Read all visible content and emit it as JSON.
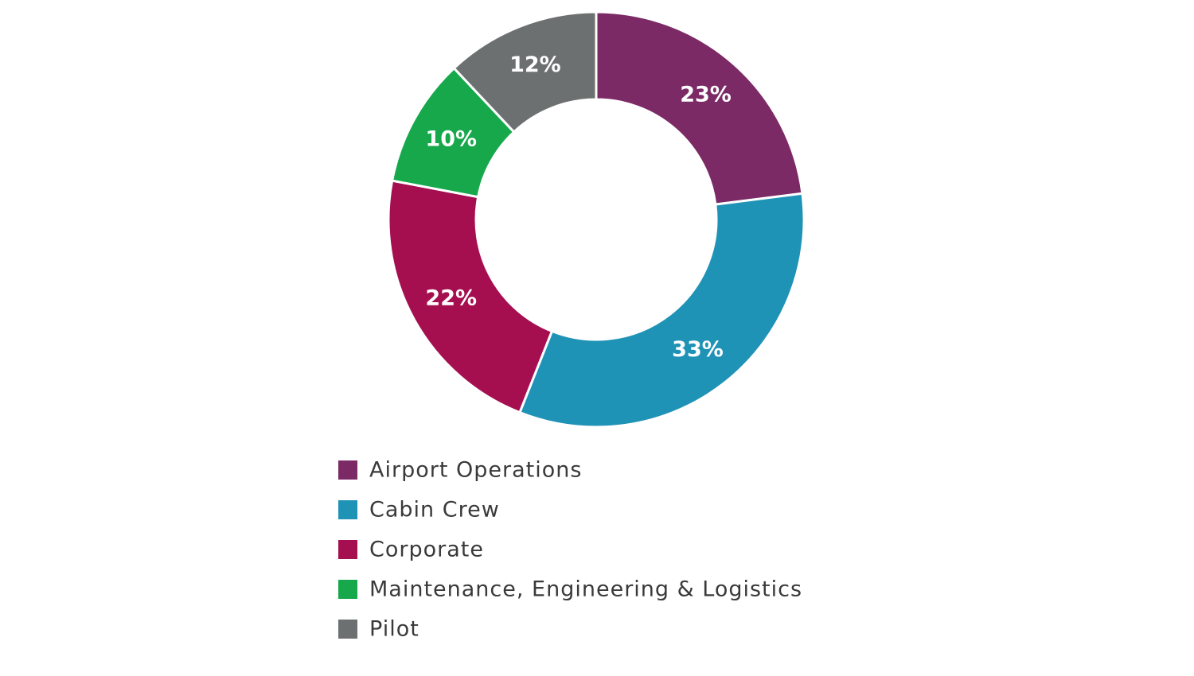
{
  "chart_data": {
    "type": "donut",
    "categories": [
      "Airport Operations",
      "Cabin Crew",
      "Corporate",
      "Maintenance, Engineering & Logistics",
      "Pilot"
    ],
    "values": [
      23,
      33,
      22,
      10,
      12
    ],
    "value_labels": [
      "23%",
      "33%",
      "22%",
      "10%",
      "12%"
    ],
    "colors": [
      "#7b2a66",
      "#1f93b6",
      "#a50f50",
      "#16a84b",
      "#6d7070"
    ]
  }
}
